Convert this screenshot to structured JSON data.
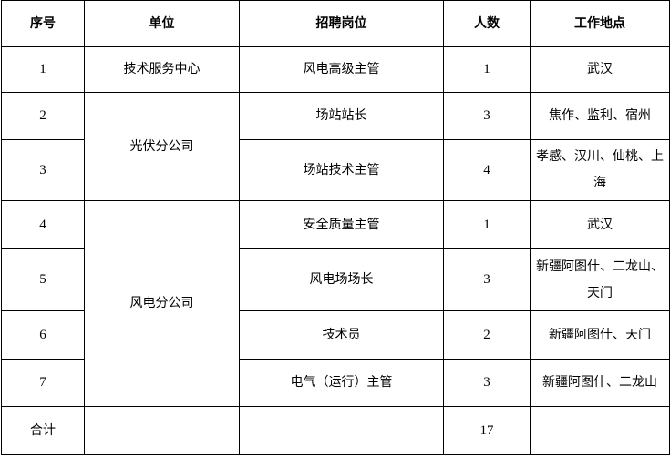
{
  "headers": [
    "序号",
    "单位",
    "招聘岗位",
    "人数",
    "工作地点"
  ],
  "rows": [
    {
      "no": "1",
      "unit": "技术服务中心",
      "position": "风电高级主管",
      "count": "1",
      "location": "武汉"
    },
    {
      "no": "2",
      "unit": "光伏分公司",
      "position": "场站站长",
      "count": "3",
      "location": "焦作、监利、宿州"
    },
    {
      "no": "3",
      "position": "场站技术主管",
      "count": "4",
      "location": "孝感、汉川、仙桃、上海"
    },
    {
      "no": "4",
      "unit": "风电分公司",
      "position": "安全质量主管",
      "count": "1",
      "location": "武汉"
    },
    {
      "no": "5",
      "position": "风电场场长",
      "count": "3",
      "location": "新疆阿图什、二龙山、天门"
    },
    {
      "no": "6",
      "position": "技术员",
      "count": "2",
      "location": "新疆阿图什、天门"
    },
    {
      "no": "7",
      "position": "电气（运行）主管",
      "count": "3",
      "location": "新疆阿图什、二龙山"
    }
  ],
  "total": {
    "label": "合计",
    "count": "17"
  }
}
